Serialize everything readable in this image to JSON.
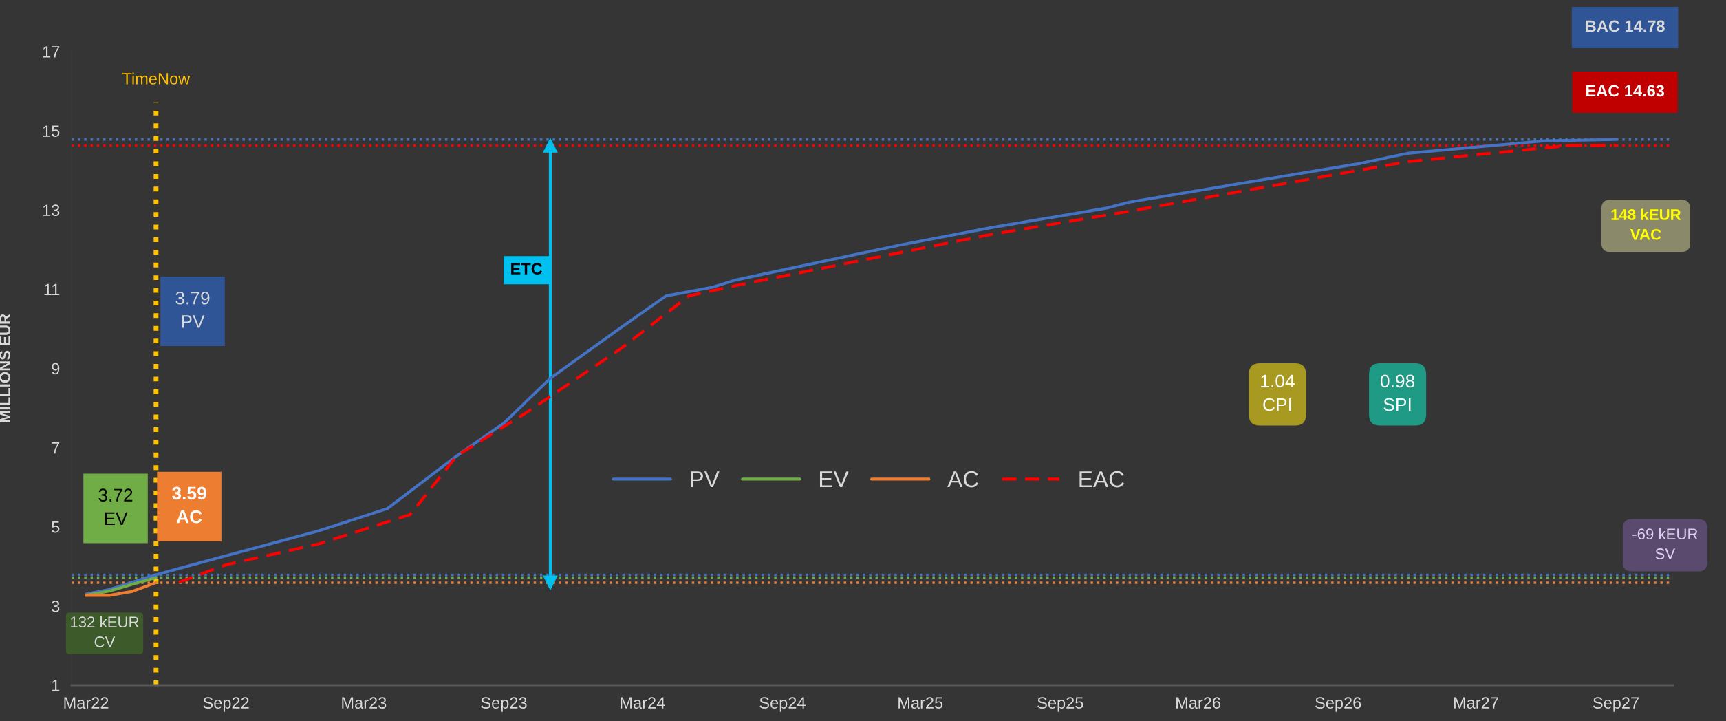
{
  "chart_data": {
    "type": "line",
    "ylabel": "MILLIONS EUR",
    "xlim": [
      "2022-02-10",
      "2027-11-15"
    ],
    "xticks": [
      {
        "value": "2022-03",
        "label": "Mar22"
      },
      {
        "value": "2022-09",
        "label": "Sep22"
      },
      {
        "value": "2023-03",
        "label": "Mar23"
      },
      {
        "value": "2023-09",
        "label": "Sep23"
      },
      {
        "value": "2024-03",
        "label": "Mar24"
      },
      {
        "value": "2024-09",
        "label": "Sep24"
      },
      {
        "value": "2025-03",
        "label": "Mar25"
      },
      {
        "value": "2025-09",
        "label": "Sep25"
      },
      {
        "value": "2026-03",
        "label": "Mar26"
      },
      {
        "value": "2026-09",
        "label": "Sep26"
      },
      {
        "value": "2027-03",
        "label": "Mar27"
      },
      {
        "value": "2027-09",
        "label": "Sep27"
      }
    ],
    "ylim": [
      1,
      17
    ],
    "yticks": [
      1,
      3,
      5,
      7,
      9,
      11,
      13,
      15,
      17
    ],
    "grid": false,
    "legend": "center",
    "series": [
      {
        "name": "PV",
        "color": "#4472c4",
        "line_style": "solid",
        "x": [
          "2022-03",
          "2022-04",
          "2022-05",
          "2022-06",
          "2022-09",
          "2023-01",
          "2023-04",
          "2023-07",
          "2023-09",
          "2023-11",
          "2024-02",
          "2024-04",
          "2024-06",
          "2024-07",
          "2025-02",
          "2025-06",
          "2025-11",
          "2025-12",
          "2026-10",
          "2026-12",
          "2027-06",
          "2027-09"
        ],
        "values": [
          3.3,
          3.42,
          3.6,
          3.79,
          4.27,
          4.9,
          5.46,
          6.79,
          7.62,
          8.75,
          10.02,
          10.83,
          11.05,
          11.23,
          12.11,
          12.55,
          13.05,
          13.2,
          14.18,
          14.43,
          14.75,
          14.78
        ]
      },
      {
        "name": "EV",
        "color": "#70ad47",
        "line_style": "solid",
        "x": [
          "2022-03",
          "2022-04",
          "2022-05",
          "2022-06"
        ],
        "values": [
          3.27,
          3.38,
          3.55,
          3.72
        ]
      },
      {
        "name": "AC",
        "color": "#ed7d31",
        "line_style": "solid",
        "x": [
          "2022-03",
          "2022-04",
          "2022-05",
          "2022-06"
        ],
        "values": [
          3.27,
          3.27,
          3.37,
          3.59
        ]
      },
      {
        "name": "EAC",
        "color": "#ff0000",
        "line_style": "dashed",
        "x": [
          "2022-07",
          "2022-09",
          "2023-01",
          "2023-05",
          "2023-07",
          "2023-10",
          "2024-02",
          "2024-05",
          "2024-07",
          "2025-06",
          "2025-12",
          "2026-12",
          "2027-07",
          "2027-09"
        ],
        "values": [
          3.6,
          4.04,
          4.57,
          5.31,
          6.79,
          7.89,
          9.49,
          10.83,
          11.09,
          12.38,
          12.97,
          14.22,
          14.63,
          14.63
        ]
      },
      {
        "color": "#00c0ef",
        "line_style": "solid",
        "marker": "triangle",
        "x": [
          "2023-11",
          "2023-11"
        ],
        "values": [
          3.59,
          14.63
        ]
      }
    ],
    "ref_lines": [
      {
        "axis": "y",
        "value": 14.78,
        "color": "#4472c4",
        "line_style": "dotted"
      },
      {
        "axis": "y",
        "value": 14.63,
        "color": "#ff0000",
        "line_style": "dotted"
      },
      {
        "axis": "y",
        "value": 3.79,
        "color": "#4472c4",
        "line_style": "dotted"
      },
      {
        "axis": "y",
        "value": 3.72,
        "color": "#70ad47",
        "line_style": "dotted"
      },
      {
        "axis": "y",
        "value": 3.59,
        "color": "#ed7d31",
        "line_style": "dotted"
      },
      {
        "axis": "x",
        "value": "2022-06",
        "label": "TimeNow",
        "color": "#ffc000",
        "line_style": "dotted"
      }
    ],
    "annotations": [
      "BAC 14.78",
      "EAC 14.63",
      "148 kEUR\nVAC",
      "1.04\nCPI",
      "0.98\nSPI",
      "3.79\nPV",
      "3.72\nEV",
      "3.59\nAC",
      "132 kEUR\nCV",
      "-69 kEUR\nSV",
      "ETC"
    ]
  }
}
